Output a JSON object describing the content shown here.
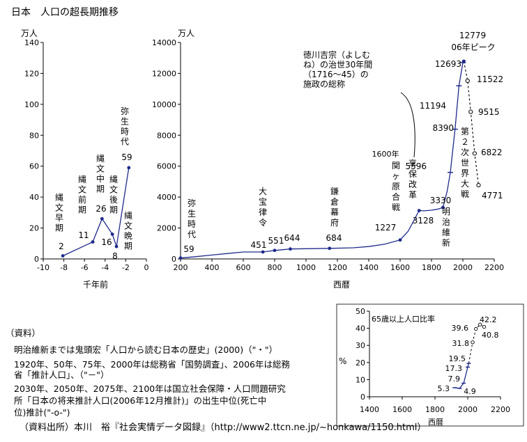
{
  "title": "日本　人口の超長期推移",
  "colors": {
    "line": "#1f2a8c",
    "marker": "#1f2a8c",
    "axis": "#000000",
    "background": "#ffffff"
  },
  "chart_data": [
    {
      "type": "line",
      "id": "ancient",
      "unit_label": "万人",
      "xlabel": "千年前",
      "xlim": [
        -10,
        0
      ],
      "ylim": [
        0,
        140
      ],
      "xticks": [
        "-10",
        "-8",
        "-6",
        "-4",
        "-2",
        "0"
      ],
      "yticks": [
        "0",
        "20",
        "40",
        "60",
        "80",
        "100",
        "120",
        "140"
      ],
      "series": [
        {
          "x": [
            -8.1,
            -5.2,
            -4.3,
            -3.3,
            -2.9,
            -1.7
          ],
          "y": [
            2,
            11,
            26,
            16,
            8,
            59
          ]
        }
      ],
      "point_labels": [
        {
          "era": "縄文早期",
          "value": "2"
        },
        {
          "era": "縄文前期",
          "value": "11"
        },
        {
          "era": "縄文中期",
          "value": "26"
        },
        {
          "era": "縄文後期",
          "value": "16"
        },
        {
          "era": "縄文晩期",
          "value": "8"
        },
        {
          "era": "弥生時代",
          "value": "59"
        }
      ]
    },
    {
      "type": "line",
      "id": "historical",
      "unit_label": "万人",
      "xlabel": "西暦",
      "xlim": [
        200,
        2200
      ],
      "ylim": [
        0,
        14000
      ],
      "xticks": [
        "200",
        "400",
        "600",
        "800",
        "1000",
        "1200",
        "1400",
        "1600",
        "1800",
        "2000",
        "2200"
      ],
      "yticks": [
        "0",
        "2000",
        "4000",
        "6000",
        "8000",
        "10000",
        "12000",
        "14000"
      ],
      "series": [
        {
          "name": "actual",
          "x": [
            200,
            300,
            400,
            500,
            600,
            725,
            800,
            900,
            1000,
            1150,
            1300,
            1400,
            1500,
            1600,
            1650,
            1721,
            1750,
            1800,
            1846,
            1873,
            1900,
            1920,
            1950,
            1975,
            2000,
            2006
          ],
          "y": [
            59,
            150,
            250,
            350,
            451,
            451,
            551,
            644,
            660,
            684,
            720,
            800,
            950,
            1227,
            1780,
            3128,
            3110,
            3150,
            3230,
            3330,
            4380,
            5596,
            8390,
            11194,
            12693,
            12779
          ]
        },
        {
          "name": "projection",
          "x": [
            2006,
            2030,
            2050,
            2075,
            2100
          ],
          "y": [
            12779,
            11522,
            9515,
            6822,
            4771
          ]
        }
      ],
      "value_labels": [
        "59",
        "451",
        "551",
        "644",
        "684",
        "1227",
        "3128",
        "3330",
        "5596",
        "8390",
        "11194",
        "12693",
        "12779",
        "11522",
        "9515",
        "6822",
        "4771"
      ],
      "annotations": {
        "yayoi": "弥生時代",
        "taiho": "大宝律令",
        "kamakura": "鎌倉幕府",
        "sekigahara_year": "1600年",
        "sekigahara": "関ヶ原合戦",
        "kyoho": "享保改革",
        "meiji": "明治維新",
        "ww2": "第２次世界大戦",
        "peak": "06年ピーク",
        "yoshimune": [
          "徳川吉宗（よしむ",
          "ね）の治世30年間",
          "（1716～45）の",
          "施政の総称"
        ]
      }
    },
    {
      "type": "line",
      "id": "aging",
      "unit_label": "%",
      "xlabel": "西暦",
      "xlim": [
        1400,
        2200
      ],
      "ylim": [
        0,
        50
      ],
      "xticks": [
        "1400",
        "1600",
        "1800",
        "2000",
        "2200"
      ],
      "yticks": [
        "0",
        "10",
        "20",
        "30",
        "40",
        "50"
      ],
      "legend": "65歳以上人口比率",
      "series": [
        {
          "name": "actual",
          "x": [
            1920,
            1950,
            1975,
            2000,
            2006
          ],
          "y": [
            5.3,
            4.9,
            7.9,
            17.3,
            19.5
          ]
        },
        {
          "name": "projection",
          "x": [
            2006,
            2030,
            2050,
            2075,
            2100
          ],
          "y": [
            19.5,
            31.8,
            39.6,
            42.2,
            40.8
          ]
        }
      ],
      "value_labels": [
        "5.3",
        "4.9",
        "7.9",
        "17.3",
        "19.5",
        "31.8",
        "39.6",
        "42.2",
        "40.8"
      ]
    }
  ],
  "notes": {
    "heading": "（資料）",
    "lines": [
      "明治維新までは鬼頭宏「人口から読む日本の歴史」(2000)（\"・\"）",
      "1920年、50年、75年、2000年は総務省「国勢調査」、2006年は総務",
      "省「推計人口」、（\"－\"）",
      "2030年、2050年、2075年、2100年は国立社会保障・人口問題研究",
      "所「日本の将来推計人口(2006年12月推計)」の出生中位(死亡中",
      "位)推計(\"-o-\")"
    ],
    "source": "（資料出所）本川　裕『社会実情データ図録』（http://www2.ttcn.ne.jp/~honkawa/1150.html）"
  }
}
